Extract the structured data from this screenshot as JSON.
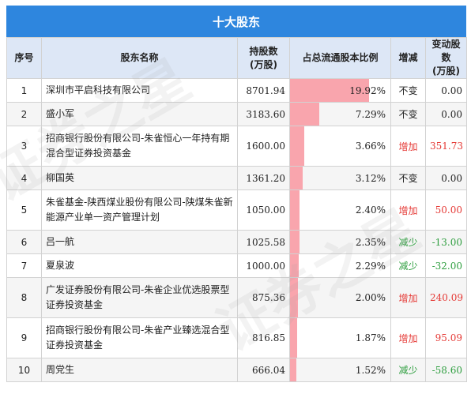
{
  "title": "十大股东",
  "headers": {
    "idx": "序号",
    "name": "股东名称",
    "shares_l1": "持股数",
    "shares_l2": "(万股)",
    "ratio": "占总流通股本比例",
    "chg": "增减",
    "chgnum_l1": "变动股数",
    "chgnum_l2": "(万股)"
  },
  "rows": [
    {
      "idx": "1",
      "name": "深圳市平启科技有限公司",
      "shares": "8701.94",
      "ratio": "19.92%",
      "ratio_value": 19.92,
      "chg": "不变",
      "chg_type": "same",
      "chgnum": "0.00"
    },
    {
      "idx": "2",
      "name": "盛小军",
      "shares": "3183.60",
      "ratio": "7.29%",
      "ratio_value": 7.29,
      "chg": "不变",
      "chg_type": "same",
      "chgnum": "0.00"
    },
    {
      "idx": "3",
      "name": "招商银行股份有限公司-朱雀恒心一年持有期混合型证券投资基金",
      "shares": "1600.00",
      "ratio": "3.66%",
      "ratio_value": 3.66,
      "chg": "增加",
      "chg_type": "add",
      "chgnum": "351.73"
    },
    {
      "idx": "4",
      "name": "柳国英",
      "shares": "1361.20",
      "ratio": "3.12%",
      "ratio_value": 3.12,
      "chg": "不变",
      "chg_type": "same",
      "chgnum": "0.00"
    },
    {
      "idx": "5",
      "name": "朱雀基金-陕西煤业股份有限公司-陕煤朱雀新能源产业单一资产管理计划",
      "shares": "1050.00",
      "ratio": "2.40%",
      "ratio_value": 2.4,
      "chg": "增加",
      "chg_type": "add",
      "chgnum": "50.00"
    },
    {
      "idx": "6",
      "name": "吕一航",
      "shares": "1025.58",
      "ratio": "2.35%",
      "ratio_value": 2.35,
      "chg": "减少",
      "chg_type": "cut",
      "chgnum": "-13.00"
    },
    {
      "idx": "7",
      "name": "夏泉波",
      "shares": "1000.00",
      "ratio": "2.29%",
      "ratio_value": 2.29,
      "chg": "减少",
      "chg_type": "cut",
      "chgnum": "-32.00"
    },
    {
      "idx": "8",
      "name": "广发证券股份有限公司-朱雀企业优选股票型证券投资基金",
      "shares": "875.36",
      "ratio": "2.00%",
      "ratio_value": 2.0,
      "chg": "增加",
      "chg_type": "add",
      "chgnum": "240.09"
    },
    {
      "idx": "9",
      "name": "招商银行股份有限公司-朱雀产业臻选混合型证券投资基金",
      "shares": "816.85",
      "ratio": "1.87%",
      "ratio_value": 1.87,
      "chg": "增加",
      "chg_type": "add",
      "chgnum": "95.09"
    },
    {
      "idx": "10",
      "name": "周党生",
      "shares": "666.04",
      "ratio": "1.52%",
      "ratio_value": 1.52,
      "chg": "减少",
      "chg_type": "cut",
      "chgnum": "-58.60"
    }
  ],
  "watermark": "证券之星",
  "colors": {
    "header_bar": "#2e86de",
    "header_row": "#dde7f6",
    "bar": "#f9a5ad",
    "increase": "#e53935",
    "decrease": "#2e9e3f"
  }
}
